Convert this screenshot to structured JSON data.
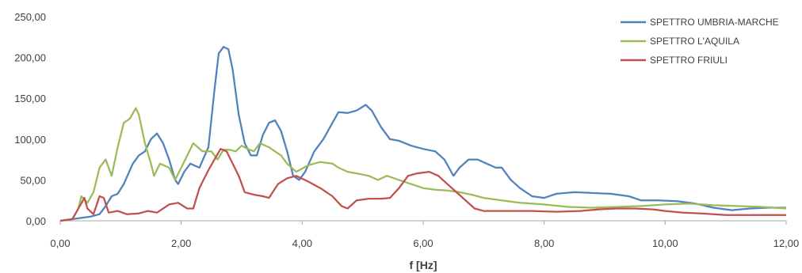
{
  "chart_data": {
    "type": "line",
    "title": "",
    "xlabel": "f [Hz]",
    "ylabel": "",
    "xlim": [
      0,
      12
    ],
    "ylim": [
      0,
      250
    ],
    "x_ticks": [
      "0,00",
      "2,00",
      "4,00",
      "6,00",
      "8,00",
      "10,00",
      "12,00"
    ],
    "y_ticks": [
      "0,00",
      "50,00",
      "100,00",
      "150,00",
      "200,00",
      "250,00"
    ],
    "grid": false,
    "legend_position": "top-right",
    "series": [
      {
        "name": "SPETTRO UMBRIA-MARCHE",
        "color": "#4f81bd",
        "points": [
          [
            0.0,
            0
          ],
          [
            0.3,
            3
          ],
          [
            0.5,
            5
          ],
          [
            0.65,
            8
          ],
          [
            0.75,
            18
          ],
          [
            0.85,
            30
          ],
          [
            0.95,
            33
          ],
          [
            1.05,
            45
          ],
          [
            1.2,
            70
          ],
          [
            1.3,
            80
          ],
          [
            1.4,
            85
          ],
          [
            1.5,
            100
          ],
          [
            1.6,
            107
          ],
          [
            1.7,
            95
          ],
          [
            1.8,
            75
          ],
          [
            1.9,
            50
          ],
          [
            1.95,
            45
          ],
          [
            2.05,
            60
          ],
          [
            2.15,
            70
          ],
          [
            2.3,
            65
          ],
          [
            2.45,
            90
          ],
          [
            2.55,
            160
          ],
          [
            2.62,
            205
          ],
          [
            2.7,
            213
          ],
          [
            2.78,
            210
          ],
          [
            2.85,
            185
          ],
          [
            2.95,
            130
          ],
          [
            3.05,
            95
          ],
          [
            3.15,
            80
          ],
          [
            3.25,
            80
          ],
          [
            3.35,
            105
          ],
          [
            3.45,
            120
          ],
          [
            3.55,
            123
          ],
          [
            3.65,
            110
          ],
          [
            3.75,
            85
          ],
          [
            3.85,
            55
          ],
          [
            3.95,
            50
          ],
          [
            4.05,
            60
          ],
          [
            4.2,
            85
          ],
          [
            4.35,
            100
          ],
          [
            4.5,
            120
          ],
          [
            4.6,
            133
          ],
          [
            4.75,
            132
          ],
          [
            4.9,
            135
          ],
          [
            5.05,
            142
          ],
          [
            5.15,
            135
          ],
          [
            5.3,
            115
          ],
          [
            5.45,
            100
          ],
          [
            5.6,
            98
          ],
          [
            5.8,
            92
          ],
          [
            6.0,
            88
          ],
          [
            6.2,
            85
          ],
          [
            6.35,
            75
          ],
          [
            6.5,
            55
          ],
          [
            6.6,
            65
          ],
          [
            6.75,
            75
          ],
          [
            6.9,
            75
          ],
          [
            7.05,
            70
          ],
          [
            7.2,
            65
          ],
          [
            7.3,
            65
          ],
          [
            7.45,
            50
          ],
          [
            7.6,
            40
          ],
          [
            7.8,
            30
          ],
          [
            8.0,
            28
          ],
          [
            8.2,
            33
          ],
          [
            8.5,
            35
          ],
          [
            8.8,
            34
          ],
          [
            9.1,
            33
          ],
          [
            9.4,
            30
          ],
          [
            9.6,
            25
          ],
          [
            9.9,
            25
          ],
          [
            10.2,
            24
          ],
          [
            10.5,
            21
          ],
          [
            10.8,
            16
          ],
          [
            11.1,
            13
          ],
          [
            11.4,
            15
          ],
          [
            11.7,
            16
          ],
          [
            12.0,
            16
          ]
        ]
      },
      {
        "name": "SPETTRO L'AQUILA",
        "color": "#9bbb59",
        "points": [
          [
            0.0,
            0
          ],
          [
            0.2,
            2
          ],
          [
            0.3,
            15
          ],
          [
            0.35,
            30
          ],
          [
            0.45,
            22
          ],
          [
            0.55,
            35
          ],
          [
            0.65,
            65
          ],
          [
            0.75,
            75
          ],
          [
            0.85,
            55
          ],
          [
            0.95,
            90
          ],
          [
            1.05,
            120
          ],
          [
            1.15,
            125
          ],
          [
            1.25,
            138
          ],
          [
            1.3,
            130
          ],
          [
            1.4,
            95
          ],
          [
            1.5,
            70
          ],
          [
            1.55,
            55
          ],
          [
            1.65,
            70
          ],
          [
            1.8,
            65
          ],
          [
            1.9,
            50
          ],
          [
            2.0,
            65
          ],
          [
            2.1,
            80
          ],
          [
            2.2,
            95
          ],
          [
            2.35,
            85
          ],
          [
            2.5,
            85
          ],
          [
            2.6,
            75
          ],
          [
            2.7,
            87
          ],
          [
            2.8,
            87
          ],
          [
            2.9,
            85
          ],
          [
            3.0,
            92
          ],
          [
            3.1,
            88
          ],
          [
            3.2,
            85
          ],
          [
            3.3,
            95
          ],
          [
            3.45,
            90
          ],
          [
            3.55,
            85
          ],
          [
            3.65,
            80
          ],
          [
            3.75,
            70
          ],
          [
            3.9,
            60
          ],
          [
            4.1,
            68
          ],
          [
            4.3,
            72
          ],
          [
            4.5,
            70
          ],
          [
            4.6,
            65
          ],
          [
            4.75,
            60
          ],
          [
            4.9,
            58
          ],
          [
            5.1,
            55
          ],
          [
            5.25,
            50
          ],
          [
            5.4,
            55
          ],
          [
            5.6,
            50
          ],
          [
            5.8,
            45
          ],
          [
            6.0,
            40
          ],
          [
            6.2,
            38
          ],
          [
            6.4,
            37
          ],
          [
            6.6,
            35
          ],
          [
            6.8,
            32
          ],
          [
            7.0,
            28
          ],
          [
            7.3,
            25
          ],
          [
            7.6,
            22
          ],
          [
            8.0,
            20
          ],
          [
            8.4,
            17
          ],
          [
            8.8,
            16
          ],
          [
            9.2,
            17
          ],
          [
            9.6,
            18
          ],
          [
            10.0,
            20
          ],
          [
            10.4,
            21
          ],
          [
            10.8,
            19
          ],
          [
            11.2,
            18
          ],
          [
            11.6,
            17
          ],
          [
            12.0,
            15
          ]
        ]
      },
      {
        "name": "SPETTRO FRIULI",
        "color": "#c0504d",
        "points": [
          [
            0.0,
            0
          ],
          [
            0.2,
            2
          ],
          [
            0.3,
            15
          ],
          [
            0.4,
            28
          ],
          [
            0.45,
            15
          ],
          [
            0.55,
            8
          ],
          [
            0.65,
            30
          ],
          [
            0.72,
            28
          ],
          [
            0.8,
            10
          ],
          [
            0.95,
            12
          ],
          [
            1.1,
            8
          ],
          [
            1.3,
            9
          ],
          [
            1.45,
            12
          ],
          [
            1.6,
            10
          ],
          [
            1.8,
            20
          ],
          [
            1.95,
            22
          ],
          [
            2.1,
            15
          ],
          [
            2.2,
            15
          ],
          [
            2.3,
            40
          ],
          [
            2.45,
            62
          ],
          [
            2.55,
            75
          ],
          [
            2.65,
            88
          ],
          [
            2.75,
            85
          ],
          [
            2.85,
            70
          ],
          [
            2.95,
            55
          ],
          [
            3.05,
            35
          ],
          [
            3.2,
            32
          ],
          [
            3.35,
            30
          ],
          [
            3.45,
            28
          ],
          [
            3.6,
            45
          ],
          [
            3.75,
            52
          ],
          [
            3.9,
            55
          ],
          [
            4.1,
            48
          ],
          [
            4.3,
            40
          ],
          [
            4.5,
            30
          ],
          [
            4.65,
            18
          ],
          [
            4.75,
            15
          ],
          [
            4.9,
            25
          ],
          [
            5.1,
            27
          ],
          [
            5.3,
            27
          ],
          [
            5.45,
            28
          ],
          [
            5.6,
            40
          ],
          [
            5.75,
            55
          ],
          [
            5.9,
            58
          ],
          [
            6.1,
            60
          ],
          [
            6.25,
            55
          ],
          [
            6.4,
            45
          ],
          [
            6.55,
            35
          ],
          [
            6.7,
            25
          ],
          [
            6.85,
            15
          ],
          [
            7.0,
            12
          ],
          [
            7.3,
            12
          ],
          [
            7.8,
            12
          ],
          [
            8.2,
            11
          ],
          [
            8.6,
            12
          ],
          [
            8.9,
            14
          ],
          [
            9.2,
            15
          ],
          [
            9.5,
            15
          ],
          [
            9.8,
            14
          ],
          [
            10.0,
            12
          ],
          [
            10.3,
            10
          ],
          [
            10.6,
            9
          ],
          [
            11.0,
            7
          ],
          [
            11.4,
            7
          ],
          [
            11.8,
            7
          ],
          [
            12.0,
            7
          ]
        ]
      }
    ]
  }
}
